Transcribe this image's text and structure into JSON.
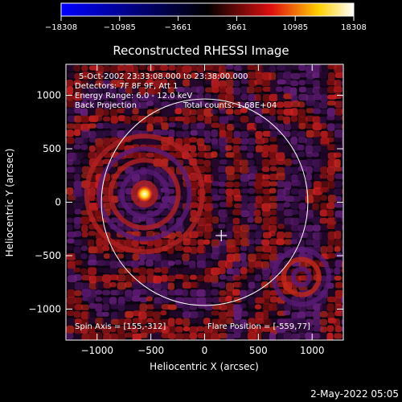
{
  "colorbar": {
    "ticks": [
      "-18308",
      "-10985",
      "-3661",
      "3661",
      "10985",
      "18308"
    ],
    "range": [
      -18308,
      18308
    ],
    "colors": [
      "#0000ff",
      "#000000",
      "#e01010",
      "#ffd000",
      "#ffffff"
    ]
  },
  "chart_data": {
    "type": "heatmap",
    "title": "Reconstructed RHESSI Image",
    "xlabel": "Heliocentric X (arcsec)",
    "ylabel": "Heliocentric Y (arcsec)",
    "xlim": [
      -1290,
      1290
    ],
    "ylim": [
      -1290,
      1290
    ],
    "xticks": [
      -1000,
      -500,
      0,
      500,
      1000
    ],
    "yticks": [
      -1000,
      -500,
      0,
      500,
      1000
    ],
    "xtick_labels": [
      "−1000",
      "−500",
      "0",
      "500",
      "1000"
    ],
    "ytick_labels": [
      "−1000",
      "−500",
      "0",
      "500",
      "1000"
    ],
    "solar_limb_radius": 960,
    "spin_axis": [
      155,
      -312
    ],
    "flare_position": [
      -559,
      77
    ]
  },
  "annotations": {
    "time": "5-Oct-2002 23:33:08.000 to 23:38:00.000",
    "detectors": "Detectors: 7F 8F 9F, Att 1",
    "energy": "Energy Range: 6.0 - 12.0 keV",
    "method": "Back Projection",
    "counts": "Total counts: 1.68E+04",
    "spin_axis": "Spin Axis = [155,-312]",
    "flare_pos": "Flare Position = [-559,77]"
  },
  "footer": {
    "date": "2-May-2022 05:05"
  }
}
